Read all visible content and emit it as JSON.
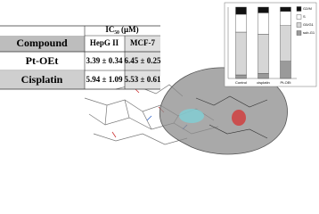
{
  "table": {
    "header": {
      "group": "IC₅₀ (μM)",
      "columns": [
        "Compound",
        "HepG II",
        "MCF-7"
      ]
    },
    "rows": [
      [
        "Pt-OEt",
        "3.39 ± 0.34",
        "6.45 ± 0.25"
      ],
      [
        "Cisplatin",
        "5.94 ± 1.09",
        "5.53 ± 0.61"
      ]
    ]
  },
  "chart_data": {
    "type": "stacked-bar",
    "categories": [
      "Control",
      "cisplatin",
      "Pt-OEt"
    ],
    "series": [
      {
        "name": "G2/M",
        "color": "#111111",
        "values": [
          10,
          8,
          6
        ]
      },
      {
        "name": "S",
        "color": "#ffffff",
        "values": [
          25,
          30,
          20
        ]
      },
      {
        "name": "G0/G1",
        "color": "#d6d6d6",
        "values": [
          60,
          55,
          50
        ]
      },
      {
        "name": "sub-G1",
        "color": "#9a9a9a",
        "values": [
          5,
          7,
          24
        ]
      }
    ],
    "ylim": [
      0,
      100
    ]
  }
}
